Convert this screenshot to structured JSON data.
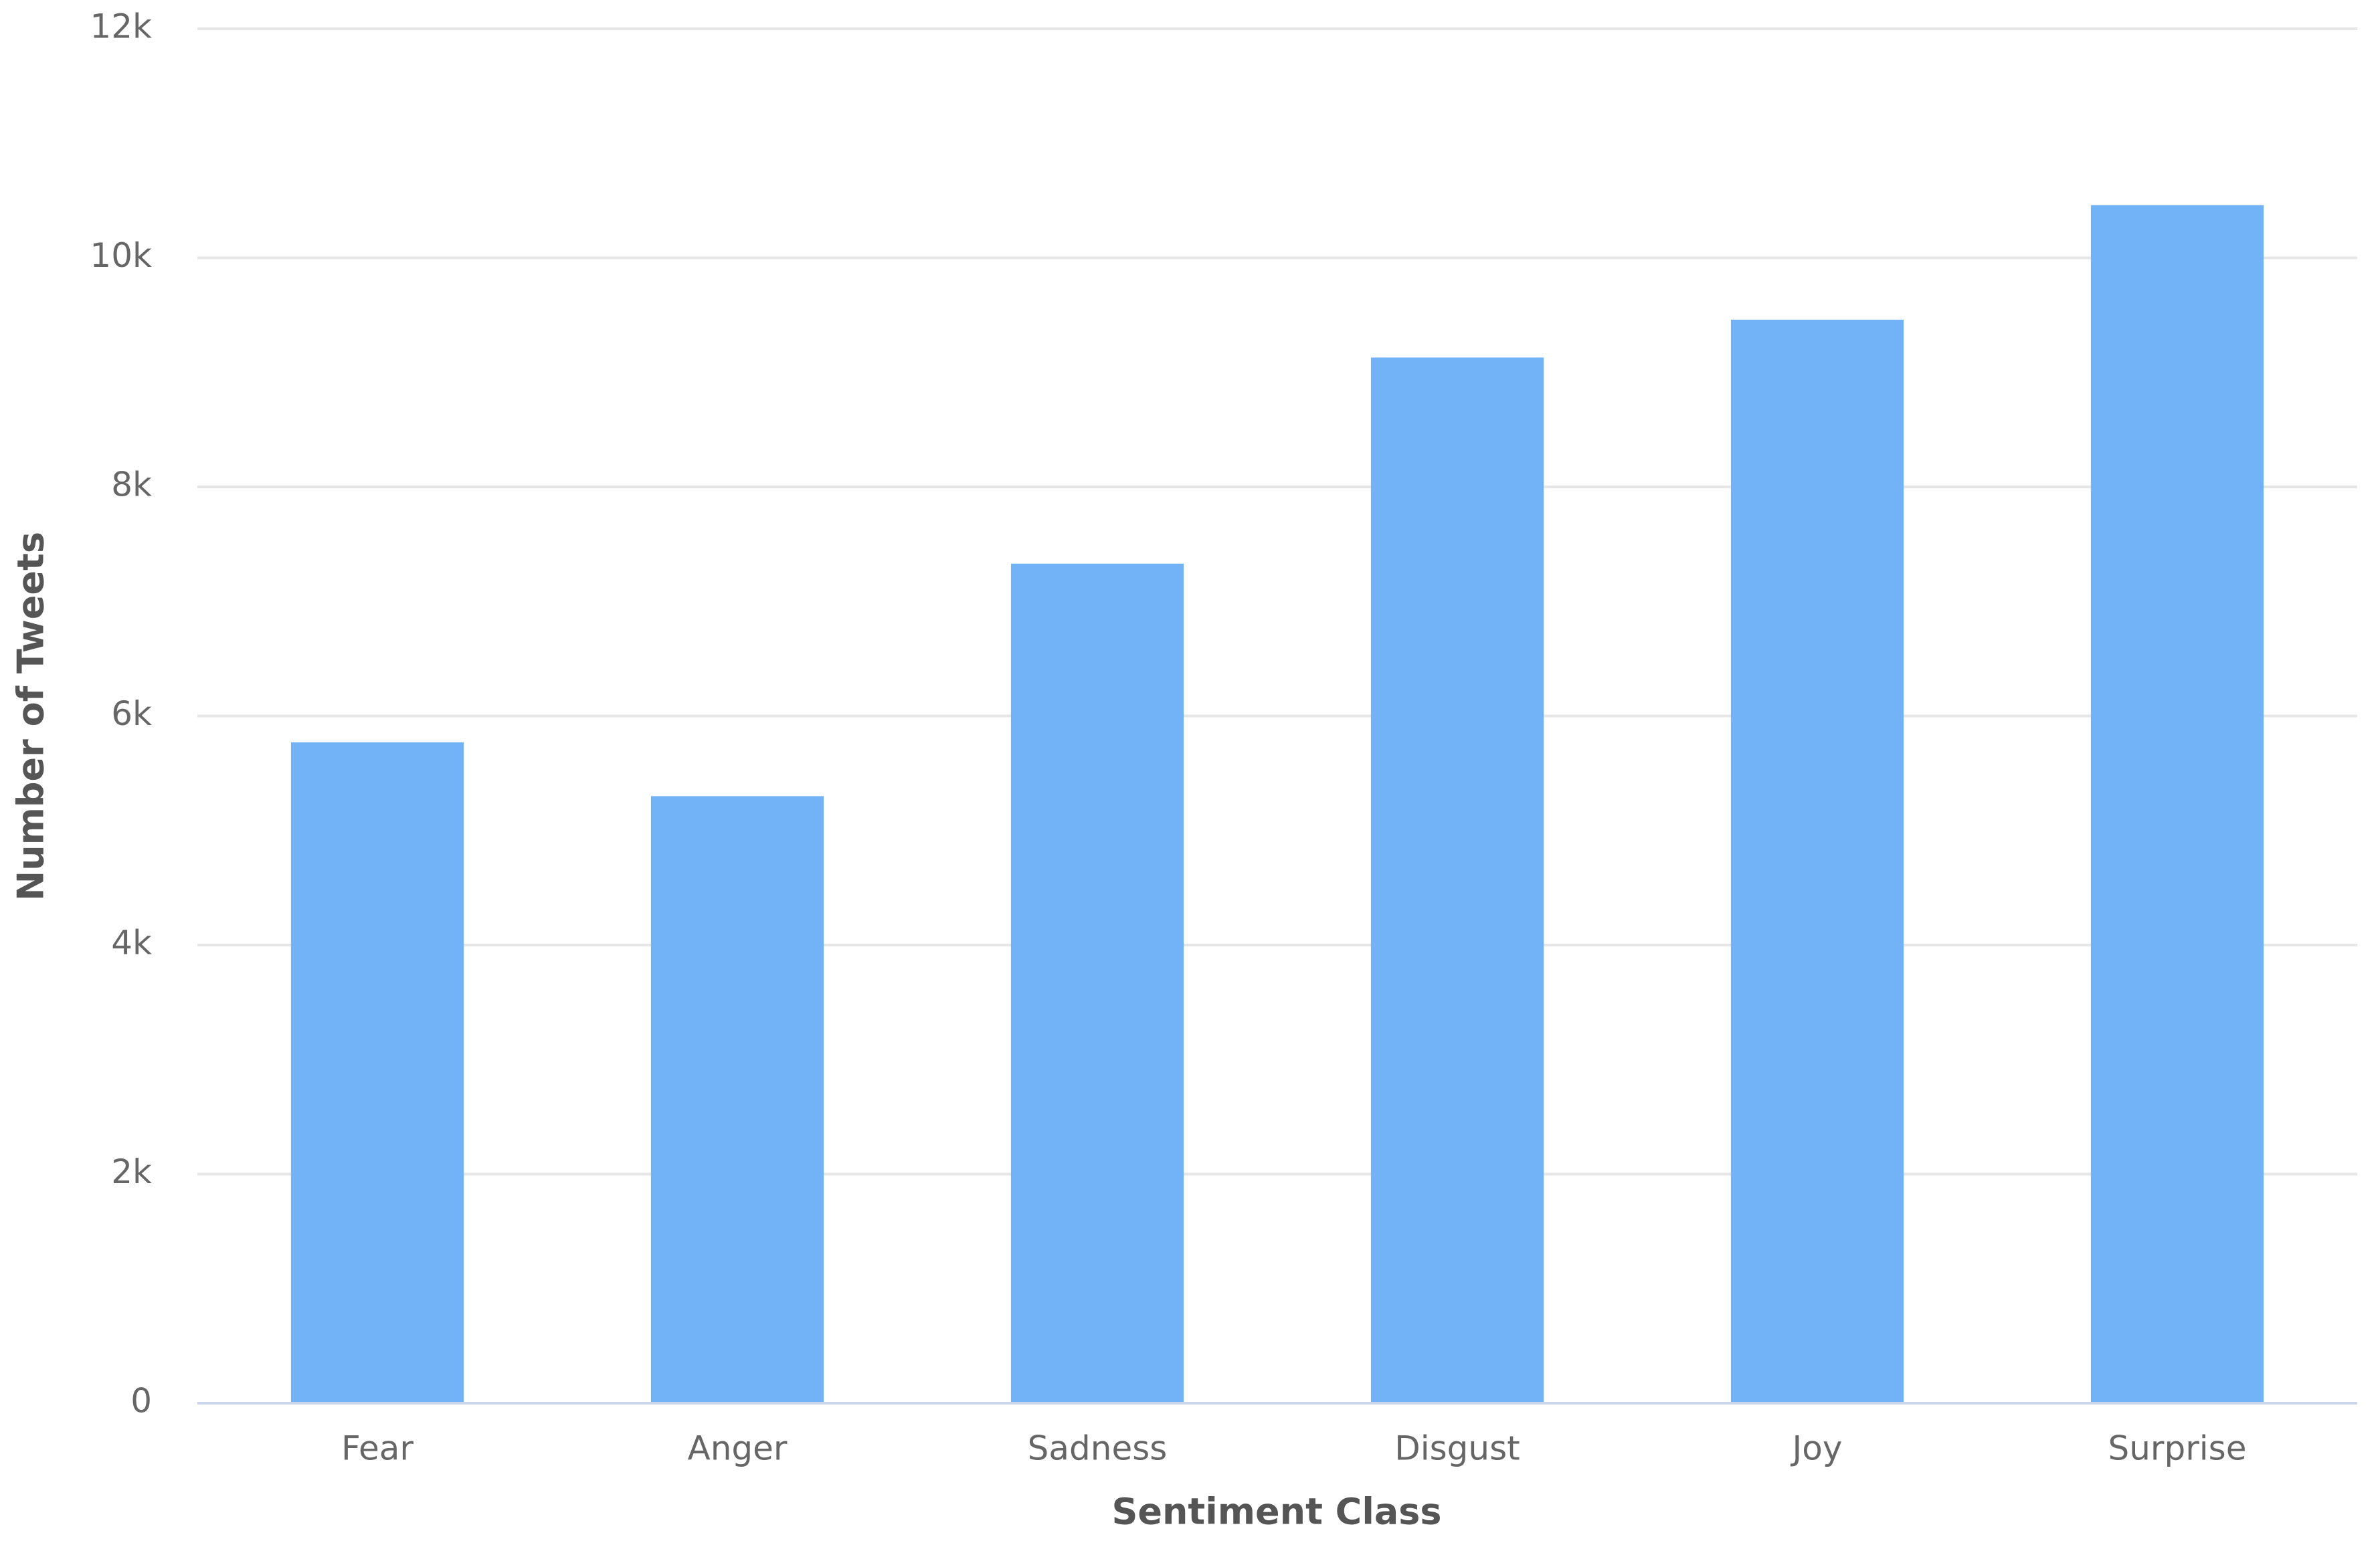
{
  "chart_data": {
    "type": "bar",
    "x_label": "Sentiment Class",
    "y_label": "Number of Tweets",
    "categories": [
      "Fear",
      "Anger",
      "Sadness",
      "Disgust",
      "Joy",
      "Surprise"
    ],
    "values": [
      5770,
      5300,
      7330,
      9130,
      9460,
      10460
    ],
    "color": "#71b3f6",
    "ylim": [
      0,
      12000
    ],
    "yticks": [
      0,
      {
        "value": 2000,
        "label": "2k"
      },
      {
        "value": 4000,
        "label": "4k"
      },
      {
        "value": 6000,
        "label": "6k"
      },
      {
        "value": 8000,
        "label": "8k"
      },
      {
        "value": 10000,
        "label": "10k"
      },
      {
        "value": 12000,
        "label": "12k"
      }
    ],
    "grid": true
  }
}
